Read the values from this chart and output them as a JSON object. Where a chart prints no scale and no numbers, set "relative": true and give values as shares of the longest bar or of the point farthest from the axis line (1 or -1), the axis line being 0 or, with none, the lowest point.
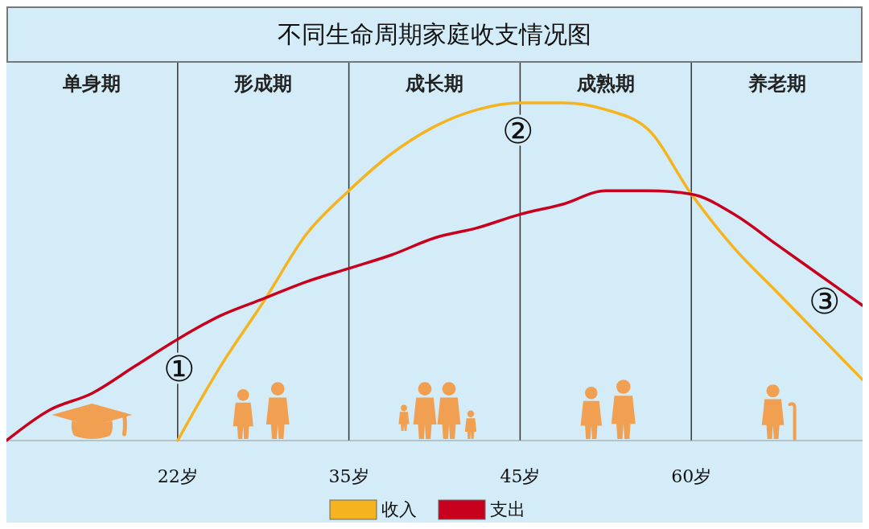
{
  "chart_data": {
    "type": "line",
    "title": "不同生命周期家庭收支情况图",
    "relative": true,
    "categories": [
      null,
      null,
      null,
      null,
      "22岁",
      null,
      null,
      null,
      "35岁",
      null,
      null,
      null,
      "45岁",
      null,
      null,
      null,
      "60岁",
      null,
      null,
      null,
      null
    ],
    "tick_labels": "x",
    "legend": "bottom",
    "grid": "x",
    "annotations": [
      "单身期",
      "形成期",
      "成长期",
      "成熟期",
      "养老期",
      "①",
      "②",
      "③"
    ],
    "series": [
      {
        "name": "收入",
        "color": "#f5b41f",
        "values": [
          null,
          null,
          null,
          null,
          0,
          0.22,
          0.41,
          0.61,
          0.74,
          0.85,
          0.93,
          0.98,
          1.0,
          1.0,
          0.98,
          0.92,
          0.73,
          0.57,
          0.44,
          0.31,
          0.18
        ]
      },
      {
        "name": "支出",
        "color": "#c8001e",
        "values": [
          0,
          0.09,
          0.14,
          0.22,
          0.3,
          0.37,
          0.42,
          0.47,
          0.51,
          0.55,
          0.6,
          0.63,
          0.67,
          0.7,
          0.74,
          0.74,
          0.73,
          0.67,
          0.58,
          0.49,
          0.4
        ]
      }
    ]
  }
}
